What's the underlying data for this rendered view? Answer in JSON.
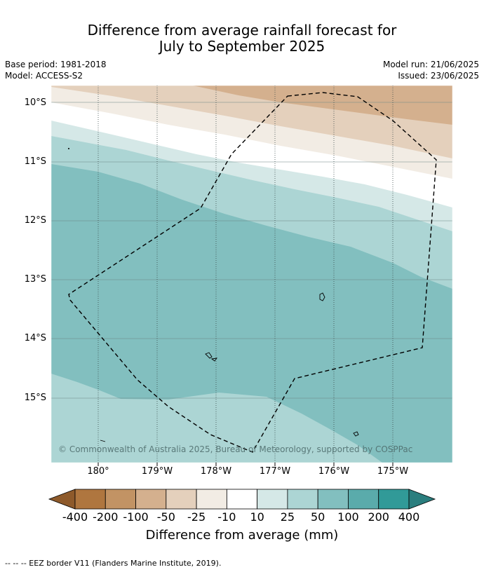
{
  "title": {
    "line1": "Difference from average rainfall forecast for",
    "line2": "July to September 2025"
  },
  "meta": {
    "base_period": "Base period: 1981-2018",
    "model": "Model: ACCESS-S2",
    "model_run": "Model run: 21/06/2025",
    "issued": "Issued: 23/06/2025"
  },
  "map": {
    "lat_labels": [
      "10°S",
      "11°S",
      "12°S",
      "13°S",
      "14°S",
      "15°S"
    ],
    "lon_labels": [
      "180°",
      "179°W",
      "178°W",
      "177°W",
      "176°W",
      "175°W"
    ],
    "copyright": "© Commonwealth of Australia 2025, Bureau of Meteorology, supported by COSPPac",
    "eez_border": "dashed black",
    "bands": [
      {
        "category": "-100 to -50",
        "color": "#d4b08e"
      },
      {
        "category": "-50 to -25",
        "color": "#e4d0bc"
      },
      {
        "category": "-25 to -10",
        "color": "#f2ece4"
      },
      {
        "category": "-10 to 10",
        "color": "#ffffff"
      },
      {
        "category": "10 to 25",
        "color": "#d5e8e7"
      },
      {
        "category": "25 to 50",
        "color": "#acd5d4"
      },
      {
        "category": "50 to 100",
        "color": "#82bfbf"
      }
    ]
  },
  "colorbar": {
    "labels": [
      "-400",
      "-200",
      "-100",
      "-50",
      "-25",
      "-10",
      "10",
      "25",
      "50",
      "100",
      "200",
      "400"
    ],
    "colors": [
      "#8e5a2b",
      "#af763f",
      "#c29364",
      "#d4b08e",
      "#e4d0bc",
      "#f2ece4",
      "#ffffff",
      "#d5e8e7",
      "#acd5d4",
      "#82bfbf",
      "#5aabab",
      "#319a98",
      "#2a7e7e"
    ],
    "title": "Difference from average (mm)"
  },
  "footnote": "-- -- -- EEZ border V11 (Flanders Marine Institute, 2019)."
}
